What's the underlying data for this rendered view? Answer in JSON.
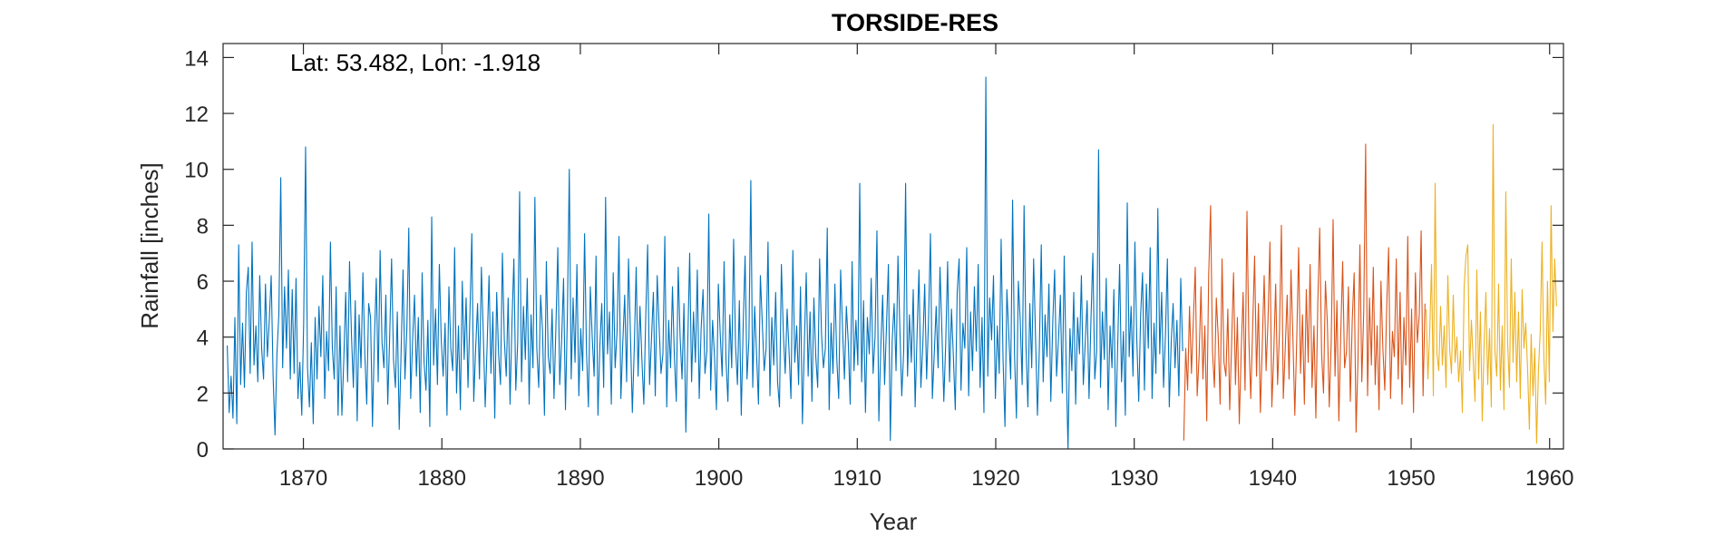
{
  "chart_data": {
    "type": "line",
    "title": "TORSIDE-RES",
    "xlabel": "Year",
    "ylabel": "Rainfall [inches]",
    "annotation": "Lat: 53.482, Lon: -1.918",
    "xlim": [
      1864.2,
      1961.0
    ],
    "ylim": [
      0,
      14.5
    ],
    "x_ticks": [
      1870,
      1880,
      1890,
      1900,
      1910,
      1920,
      1930,
      1940,
      1950,
      1960
    ],
    "y_ticks": [
      0,
      2,
      4,
      6,
      8,
      10,
      12,
      14
    ],
    "grid": false,
    "resolution": "monthly",
    "colors": {
      "axis": "#262626",
      "frame": "#262626"
    },
    "series": [
      {
        "color": "#0072BD",
        "x_start": 1864.5,
        "x_end": 1933.5,
        "values": [
          3.7,
          1.3,
          2.6,
          1.1,
          4.7,
          0.9,
          7.3,
          2.3,
          4.5,
          2.2,
          5.6,
          6.5,
          2.7,
          7.4,
          3.0,
          4.4,
          2.4,
          6.2,
          3.6,
          2.5,
          5.9,
          3.3,
          4.6,
          6.2,
          2.6,
          0.5,
          3.4,
          4.8,
          9.7,
          2.9,
          5.8,
          3.6,
          6.4,
          2.5,
          5.7,
          2.7,
          6.1,
          1.8,
          3.1,
          1.2,
          4.5,
          10.8,
          2.9,
          1.5,
          3.8,
          0.9,
          4.7,
          2.5,
          5.1,
          3.3,
          6.2,
          1.8,
          4.2,
          2.8,
          7.4,
          3.6,
          2.5,
          5.8,
          1.2,
          4.4,
          1.2,
          3.2,
          5.6,
          2.4,
          6.7,
          4.1,
          2.2,
          5.3,
          1.0,
          4.8,
          2.9,
          6.3,
          3.4,
          1.6,
          5.2,
          4.7,
          0.8,
          3.9,
          6.1,
          2.4,
          7.1,
          3.8,
          2.9,
          5.5,
          1.6,
          4.0,
          6.8,
          3.2,
          2.2,
          4.9,
          0.7,
          3.5,
          6.4,
          2.5,
          4.3,
          7.9,
          1.8,
          3.9,
          5.5,
          2.6,
          4.7,
          1.3,
          6.3,
          3.1,
          2.1,
          4.6,
          0.8,
          8.3,
          3.0,
          5.0,
          2.3,
          6.6,
          3.9,
          2.6,
          4.5,
          1.2,
          5.8,
          3.6,
          2.8,
          7.2,
          2.0,
          4.4,
          1.4,
          6.0,
          3.2,
          5.4,
          2.2,
          4.8,
          7.7,
          1.7,
          3.6,
          5.2,
          2.5,
          6.5,
          4.1,
          1.5,
          3.7,
          6.2,
          2.7,
          4.9,
          1.1,
          5.6,
          3.4,
          2.3,
          7.0,
          3.9,
          2.6,
          5.4,
          1.6,
          4.5,
          6.8,
          2.1,
          3.8,
          9.2,
          2.4,
          5.1,
          3.2,
          6.1,
          1.6,
          4.8,
          2.9,
          9.0,
          3.6,
          2.2,
          5.5,
          4.2,
          1.2,
          6.7,
          3.3,
          2.7,
          5.0,
          1.8,
          4.4,
          7.2,
          2.3,
          3.9,
          6.1,
          1.4,
          4.8,
          10.0,
          2.5,
          5.4,
          3.1,
          6.6,
          1.9,
          4.3,
          2.8,
          7.7,
          3.5,
          1.5,
          5.8,
          4.0,
          2.6,
          6.9,
          1.2,
          3.7,
          5.2,
          2.2,
          9.0,
          3.4,
          4.9,
          1.6,
          6.3,
          2.9,
          4.2,
          7.6,
          1.8,
          3.8,
          5.5,
          2.4,
          6.8,
          4.1,
          1.3,
          3.6,
          6.5,
          2.6,
          5.1,
          3.2,
          1.6,
          4.7,
          7.3,
          2.3,
          3.9,
          5.6,
          1.9,
          6.2,
          4.4,
          2.7,
          3.4,
          7.6,
          1.5,
          4.6,
          2.9,
          5.8,
          3.3,
          1.7,
          6.5,
          4.0,
          2.5,
          5.2,
          0.6,
          3.8,
          7.0,
          2.4,
          4.9,
          3.1,
          6.4,
          1.8,
          4.3,
          5.7,
          2.7,
          3.5,
          8.4,
          2.1,
          4.6,
          3.3,
          1.4,
          5.9,
          4.1,
          2.6,
          6.7,
          3.2,
          1.7,
          4.8,
          2.9,
          7.5,
          3.7,
          2.3,
          5.3,
          1.2,
          4.4,
          6.9,
          2.5,
          3.9,
          9.6,
          2.2,
          5.1,
          3.4,
          1.6,
          6.2,
          4.5,
          2.8,
          3.6,
          7.4,
          1.9,
          4.7,
          3.0,
          5.6,
          2.4,
          1.5,
          6.6,
          4.2,
          2.7,
          5.0,
          3.5,
          1.8,
          7.1,
          3.1,
          4.4,
          2.3,
          5.8,
          0.9,
          3.7,
          6.3,
          2.6,
          4.9,
          1.7,
          5.4,
          3.3,
          2.2,
          6.8,
          4.1,
          2.9,
          3.6,
          7.9,
          1.4,
          4.5,
          2.7,
          5.9,
          3.2,
          1.8,
          6.4,
          4.3,
          2.5,
          5.1,
          3.8,
          1.6,
          6.7,
          2.8,
          4.6,
          3.0,
          9.5,
          2.4,
          5.3,
          1.3,
          4.7,
          3.4,
          6.1,
          2.7,
          4.0,
          7.8,
          1.0,
          3.6,
          5.5,
          2.3,
          4.4,
          6.6,
          0.3,
          3.9,
          5.2,
          2.8,
          6.9,
          4.3,
          1.9,
          3.5,
          9.5,
          2.6,
          4.8,
          3.1,
          5.7,
          1.5,
          4.1,
          6.4,
          2.2,
          3.7,
          5.9,
          2.5,
          4.6,
          7.7,
          1.8,
          3.4,
          5.1,
          2.9,
          6.5,
          4.2,
          1.7,
          3.8,
          6.7,
          2.4,
          5.0,
          3.3,
          1.4,
          5.6,
          6.8,
          2.1,
          4.5,
          3.6,
          7.2,
          1.9,
          4.9,
          2.8,
          5.8,
          3.5,
          6.6,
          2.2,
          4.7,
          1.3,
          13.3,
          2.6,
          5.4,
          3.9,
          6.2,
          1.8,
          4.4,
          2.7,
          7.5,
          3.2,
          0.8,
          5.7,
          4.1,
          2.5,
          8.9,
          3.4,
          1.1,
          6.0,
          4.6,
          2.3,
          8.7,
          3.7,
          1.5,
          5.2,
          2.9,
          6.8,
          4.0,
          1.2,
          3.6,
          7.3,
          2.4,
          4.8,
          3.3,
          5.9,
          1.7,
          4.5,
          6.4,
          2.6,
          3.9,
          5.5,
          2.0,
          6.9,
          3.1,
          0.0,
          4.3,
          2.8,
          5.6,
          1.6,
          4.7,
          3.4,
          6.2,
          2.3,
          3.8,
          5.3,
          1.8,
          4.6,
          7.0,
          2.5,
          3.5,
          10.7,
          2.2,
          4.9,
          3.2,
          6.1,
          1.4,
          4.4,
          2.9,
          5.7,
          0.8,
          3.7,
          6.6,
          2.4,
          4.2,
          1.2,
          8.8,
          3.3,
          5.1,
          2.6,
          7.4,
          3.9,
          1.7,
          4.8,
          6.3,
          2.1,
          5.9,
          3.6,
          7.2,
          1.8,
          4.5,
          2.7,
          8.6,
          3.4,
          5.6,
          2.2,
          4.1,
          6.8,
          1.5,
          3.8,
          5.2,
          2.9,
          4.6,
          1.9,
          6.1,
          3.5
        ]
      },
      {
        "color": "#D95319",
        "x_start": 1933.58,
        "x_end": 1951.0,
        "values": [
          0.3,
          3.6,
          2.1,
          5.1,
          2.7,
          4.6,
          6.5,
          1.9,
          3.3,
          5.8,
          2.5,
          4.4,
          1.0,
          6.2,
          8.7,
          3.5,
          2.2,
          5.4,
          4.0,
          1.6,
          6.8,
          3.1,
          2.6,
          5.0,
          1.4,
          3.8,
          6.3,
          2.3,
          4.7,
          0.9,
          3.5,
          5.6,
          2.1,
          8.5,
          3.9,
          1.8,
          4.4,
          6.9,
          2.6,
          5.2,
          1.3,
          3.7,
          6.2,
          2.8,
          4.6,
          7.4,
          1.5,
          3.4,
          5.9,
          2.3,
          4.2,
          8.0,
          1.8,
          3.6,
          5.5,
          2.5,
          6.4,
          4.0,
          1.2,
          3.9,
          7.2,
          2.7,
          4.8,
          1.6,
          5.7,
          3.1,
          6.6,
          2.2,
          4.4,
          1.1,
          5.2,
          7.9,
          3.4,
          2.0,
          6.0,
          4.5,
          1.5,
          3.8,
          8.2,
          2.6,
          5.3,
          1.0,
          4.1,
          6.7,
          2.9,
          3.5,
          5.8,
          1.7,
          4.6,
          6.3,
          0.6,
          3.2,
          7.3,
          2.4,
          4.9,
          10.9,
          1.9,
          5.4,
          3.0,
          6.5,
          2.3,
          4.4,
          1.4,
          6.0,
          3.6,
          2.1,
          5.1,
          7.2,
          1.8,
          4.2,
          3.3,
          6.8,
          2.5,
          5.6,
          1.6,
          4.7,
          3.0,
          7.6,
          2.2,
          5.0,
          1.3,
          6.3,
          3.8,
          4.8,
          7.8,
          1.9,
          5.2
        ]
      },
      {
        "color": "#EDB120",
        "x_start": 1951.08,
        "x_end": 1960.5,
        "values": [
          5.0,
          2.5,
          4.2,
          6.6,
          1.9,
          9.5,
          3.4,
          2.8,
          5.1,
          3.0,
          4.4,
          2.2,
          6.2,
          3.6,
          2.7,
          5.5,
          3.1,
          4.0,
          2.4,
          3.5,
          1.3,
          5.8,
          6.9,
          7.3,
          2.8,
          4.6,
          3.2,
          1.7,
          6.4,
          2.5,
          4.9,
          1.0,
          3.7,
          5.6,
          2.3,
          4.3,
          1.5,
          11.6,
          3.5,
          2.6,
          5.9,
          2.1,
          4.4,
          1.4,
          9.2,
          3.8,
          2.2,
          6.8,
          3.1,
          5.6,
          2.4,
          4.9,
          1.8,
          5.7,
          3.6,
          4.5,
          2.9,
          0.7,
          4.1,
          1.9,
          3.6,
          0.2,
          2.8,
          4.2,
          7.4,
          3.3,
          1.6,
          6.0,
          2.4,
          8.7,
          4.2,
          6.8,
          5.1
        ]
      }
    ]
  }
}
